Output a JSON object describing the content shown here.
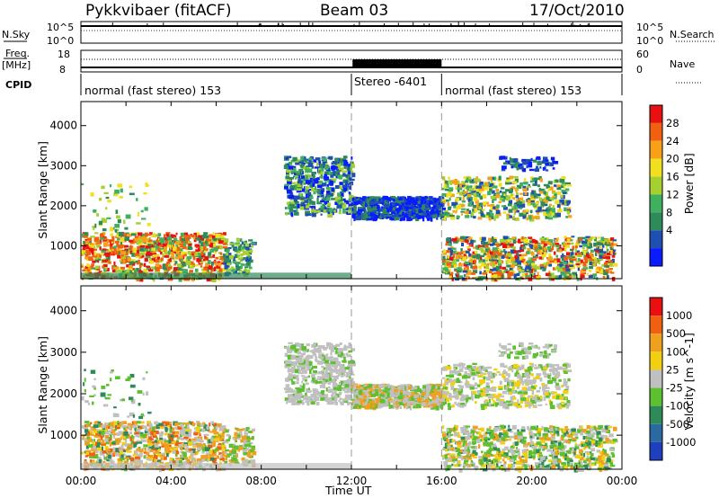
{
  "header": {
    "station": "Pykkvibaer (fitACF)",
    "beam": "Beam 03",
    "date": "17/Oct/2010"
  },
  "strip_labels": {
    "nsky": "N.Sky",
    "nsky_ticks": [
      "10^5",
      "10^0"
    ],
    "nsearch": "N.Search",
    "nsearch_ticks": [
      "10^5",
      "10^0"
    ],
    "freq_line1": "Freq.",
    "freq_line2": "[MHz]",
    "freq_ticks": [
      "18",
      "8"
    ],
    "nave": "Nave",
    "nave_ticks": [
      "60",
      "0"
    ],
    "cpid": "CPID"
  },
  "modes": [
    {
      "label": "normal (fast stereo) 153"
    },
    {
      "label": "Stereo -6401"
    },
    {
      "label": "normal (fast stereo) 153"
    }
  ],
  "colors": {
    "power": [
      "#0a1cff",
      "#1f4fb0",
      "#2f8a5a",
      "#3fb060",
      "#a6d030",
      "#f0e020",
      "#f8a018",
      "#f06010",
      "#e81010"
    ],
    "velocity": [
      "#1f3fbf",
      "#2a6aa0",
      "#2f8a5a",
      "#5cc030",
      "#c0c0c0",
      "#f0d010",
      "#f0a020",
      "#f06010",
      "#e81010"
    ]
  },
  "chart_data": [
    {
      "type": "heatmap",
      "panel": "power",
      "xlabel": "",
      "ylabel": "Slant Range [km]",
      "xlim_hours": [
        0,
        24
      ],
      "ylim": [
        180,
        4600
      ],
      "y_ticks": [
        "1000",
        "2000",
        "3000",
        "4000"
      ],
      "colorbar_label": "Power [dB]",
      "colorbar_ticks": [
        "4",
        "8",
        "12",
        "16",
        "20",
        "24",
        "28"
      ],
      "mode_boundaries_hours": [
        12,
        16
      ],
      "echo_regions": [
        {
          "t0": 0.0,
          "t1": 6.5,
          "r0": 200,
          "r1": 1350,
          "level": "high"
        },
        {
          "t0": 6.5,
          "t1": 7.6,
          "r0": 300,
          "r1": 1200,
          "level": "low"
        },
        {
          "t0": 9.0,
          "t1": 12.0,
          "r0": 1800,
          "r1": 3250,
          "level": "medium"
        },
        {
          "t0": 12.0,
          "t1": 16.0,
          "r0": 1700,
          "r1": 2200,
          "level": "low"
        },
        {
          "t0": 16.0,
          "t1": 21.5,
          "r0": 1700,
          "r1": 2700,
          "level": "medium"
        },
        {
          "t0": 16.0,
          "t1": 23.5,
          "r0": 200,
          "r1": 1200,
          "level": "high"
        }
      ]
    },
    {
      "type": "heatmap",
      "panel": "velocity",
      "xlabel": "Time UT",
      "ylabel": "Slant Range [km]",
      "xlim_hours": [
        0,
        24
      ],
      "ylim": [
        180,
        4600
      ],
      "x_ticks": [
        "00:00",
        "04:00",
        "08:00",
        "12:00",
        "16:00",
        "20:00",
        "00:00"
      ],
      "y_ticks": [
        "1000",
        "2000",
        "3000",
        "4000"
      ],
      "colorbar_label": "Velocity [m s^-1]",
      "colorbar_ticks": [
        "1000",
        "500",
        "100",
        "25",
        "-25",
        "-100",
        "-500",
        "-1000"
      ],
      "mode_boundaries_hours": [
        12,
        16
      ]
    }
  ]
}
